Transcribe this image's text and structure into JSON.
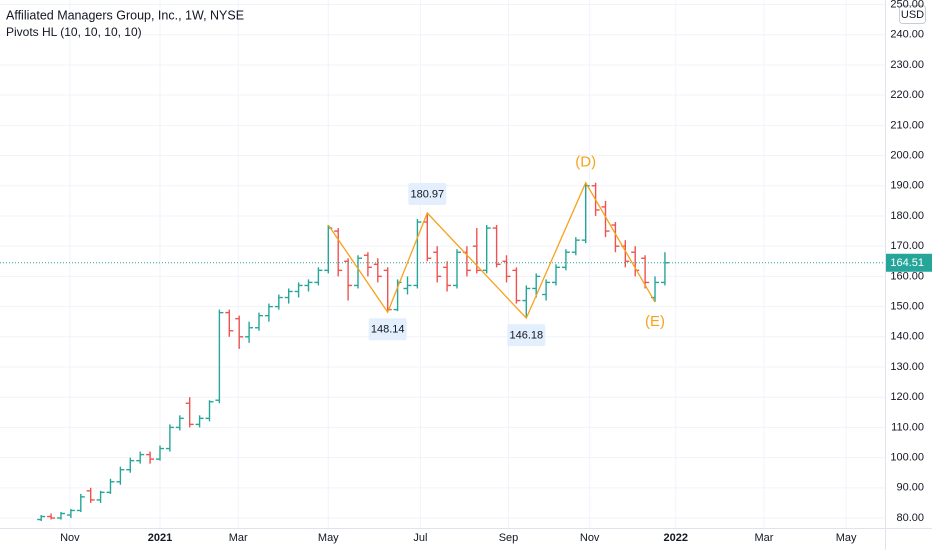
{
  "chart_data": {
    "type": "ohlc",
    "title": "Affiliated Managers Group, Inc., 1W, NYSE",
    "indicator": "Pivots HL (10, 10, 10, 10)",
    "currency": "USD",
    "up_color": "#26a69a",
    "down_color": "#ef5350",
    "pivot_color": "#f7a21b",
    "grid": true,
    "x": [
      -12,
      -11,
      -10,
      -9,
      -8,
      -7,
      -6,
      -5,
      -4,
      -3,
      -2,
      -1,
      0,
      1,
      2,
      3,
      4,
      5,
      6,
      7,
      8,
      9,
      10,
      11,
      12,
      13,
      14,
      15,
      16,
      17,
      18,
      19,
      20,
      21,
      22,
      23,
      24,
      25,
      26,
      27,
      28,
      29,
      30,
      31,
      32,
      33,
      34,
      35,
      36,
      37,
      38,
      39,
      40,
      41,
      42,
      43,
      44,
      45,
      46,
      47,
      48,
      49,
      50,
      51
    ],
    "open": [
      79.5,
      80.5,
      80,
      81,
      82.5,
      89,
      86,
      88.5,
      92,
      96,
      99,
      101,
      99.5,
      103,
      110,
      118,
      111,
      113,
      119,
      148,
      146,
      140,
      143,
      147,
      150,
      153,
      155,
      157,
      158,
      162,
      175,
      165,
      157,
      167,
      164,
      162,
      149,
      156,
      157,
      178,
      168,
      163,
      157,
      168,
      170,
      162,
      176,
      165,
      162,
      152,
      156,
      154,
      158,
      163,
      168,
      172,
      190,
      183,
      177,
      170,
      168,
      166,
      153,
      158
    ],
    "high": [
      81,
      81.5,
      82,
      83,
      88,
      90,
      89,
      93,
      97,
      100,
      102,
      102,
      104,
      111,
      114,
      120,
      114,
      119,
      149,
      149,
      147,
      145,
      148,
      151,
      154,
      156,
      158,
      159,
      163,
      177,
      176,
      166,
      167,
      168,
      166,
      163,
      159,
      160,
      179,
      180.97,
      170,
      165,
      169,
      170,
      176,
      177,
      177,
      167,
      163,
      157,
      161,
      159,
      164,
      169,
      173,
      191,
      191,
      185,
      178,
      172,
      170,
      167,
      160,
      168
    ],
    "low": [
      79,
      79.5,
      79.5,
      80,
      82,
      85,
      85,
      88,
      91,
      95,
      98,
      98,
      99,
      102,
      109,
      110,
      110,
      112,
      118,
      140,
      136,
      138,
      142,
      145,
      149,
      151,
      153,
      155,
      157,
      161,
      160,
      152,
      156,
      160,
      158,
      148.14,
      148.5,
      154,
      156,
      165,
      158,
      155,
      156,
      160,
      161,
      161,
      163,
      158,
      151,
      146.18,
      153,
      152,
      157,
      162,
      167,
      171,
      180,
      173,
      168,
      163,
      160,
      156,
      151.5,
      157
    ],
    "close": [
      80.5,
      80,
      81.5,
      82.5,
      87,
      86,
      88.5,
      92,
      96,
      99,
      101,
      99.5,
      103,
      110,
      113,
      111,
      113,
      118.5,
      148,
      142,
      140,
      143,
      147,
      150,
      153,
      155,
      157,
      158,
      162,
      176,
      162,
      157,
      166,
      163,
      160,
      149,
      158,
      157,
      178,
      166,
      160,
      157,
      168,
      162,
      162,
      176,
      164,
      160,
      152,
      156,
      160,
      158,
      163,
      168,
      172,
      190,
      182,
      175,
      170,
      165,
      162,
      158,
      158,
      164.51
    ],
    "pivot_x": [
      17,
      23,
      27,
      37,
      43,
      50
    ],
    "pivot_values": [
      177,
      148.14,
      180.97,
      146.18,
      191,
      151.5
    ],
    "pivot_show_value": [
      false,
      true,
      true,
      true,
      false,
      false
    ],
    "pivot_tags": [
      null,
      null,
      null,
      null,
      "(D)",
      "(E)"
    ],
    "xlim": [
      -16.16,
      73.23
    ],
    "xticks": [
      {
        "value": -9.1,
        "label": "Nov"
      },
      {
        "value": 0,
        "label": "2021"
      },
      {
        "value": 7.9,
        "label": "Mar"
      },
      {
        "value": 17,
        "label": "May"
      },
      {
        "value": 26.3,
        "label": "Jul"
      },
      {
        "value": 35.2,
        "label": "Sep"
      },
      {
        "value": 43.4,
        "label": "Nov"
      },
      {
        "value": 52.1,
        "label": "2022"
      },
      {
        "value": 61,
        "label": "Mar"
      },
      {
        "value": 69.3,
        "label": "May"
      }
    ],
    "ylim": [
      76.7,
      251.5
    ],
    "yticks": [
      {
        "value": 80,
        "label": "80.00"
      },
      {
        "value": 90,
        "label": "90.00"
      },
      {
        "value": 100,
        "label": "100.00"
      },
      {
        "value": 110,
        "label": "110.00"
      },
      {
        "value": 120,
        "label": "120.00"
      },
      {
        "value": 130,
        "label": "130.00"
      },
      {
        "value": 140,
        "label": "140.00"
      },
      {
        "value": 150,
        "label": "150.00"
      },
      {
        "value": 160,
        "label": "160.00"
      },
      {
        "value": 170,
        "label": "170.00"
      },
      {
        "value": 180,
        "label": "180.00"
      },
      {
        "value": 190,
        "label": "190.00"
      },
      {
        "value": 200,
        "label": "200.00"
      },
      {
        "value": 210,
        "label": "210.00"
      },
      {
        "value": 220,
        "label": "220.00"
      },
      {
        "value": 230,
        "label": "230.00"
      },
      {
        "value": 240,
        "label": "240.00"
      },
      {
        "value": 250,
        "label": "250.00"
      }
    ]
  }
}
